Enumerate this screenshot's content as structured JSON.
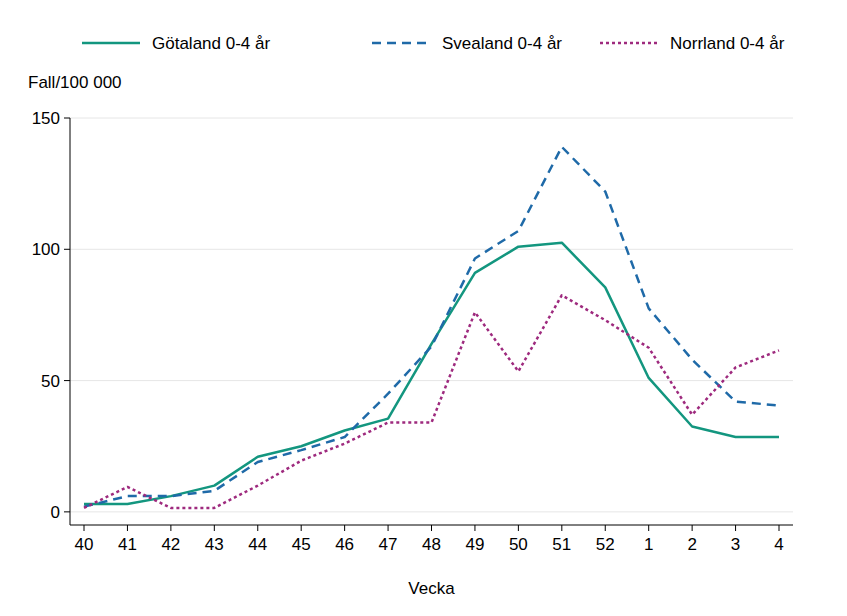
{
  "chart_data": {
    "type": "line",
    "y_label": "Fall/100 000",
    "x_label": "Vecka",
    "categories": [
      "40",
      "41",
      "42",
      "43",
      "44",
      "45",
      "46",
      "47",
      "48",
      "49",
      "50",
      "51",
      "52",
      "1",
      "2",
      "3",
      "4"
    ],
    "series": [
      {
        "name": "Götaland 0-4 år",
        "color": "#13967f",
        "line_style": "solid",
        "values": [
          3,
          3,
          6,
          10,
          21,
          25,
          31,
          35.5,
          64,
          91,
          101,
          102.5,
          85.5,
          51,
          32.5,
          28.5,
          28.5
        ]
      },
      {
        "name": "Svealand 0-4 år",
        "color": "#1f6aa8",
        "line_style": "dashed",
        "values": [
          2,
          6,
          6,
          8,
          19,
          23.5,
          28.5,
          45,
          63,
          96.5,
          107,
          139,
          122,
          77.5,
          58,
          42,
          40.5
        ]
      },
      {
        "name": "Norrland 0-4 år",
        "color": "#9e2a7e",
        "line_style": "dotted",
        "values": [
          1.5,
          9.5,
          1.5,
          1.5,
          10,
          19.5,
          26,
          34,
          34,
          76,
          53.5,
          82.5,
          73,
          62.5,
          37,
          55,
          61.5
        ]
      }
    ],
    "ylim": [
      -5,
      150
    ],
    "yticks": [
      0,
      50,
      100,
      150
    ],
    "grid": true,
    "legend": "top"
  }
}
